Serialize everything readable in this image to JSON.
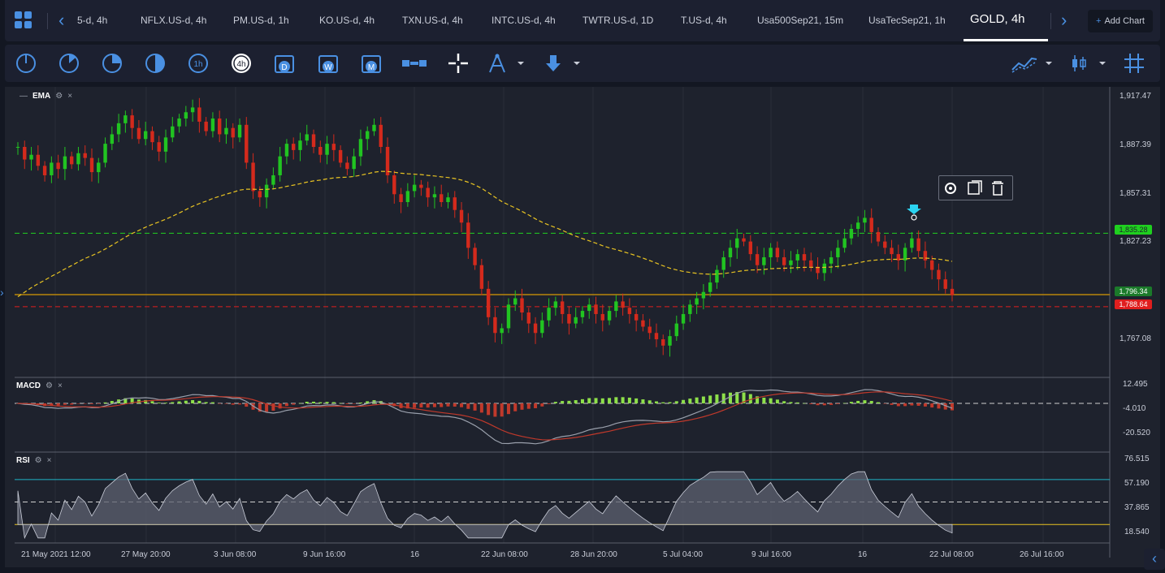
{
  "tabs": [
    {
      "label": "5-d, 4h"
    },
    {
      "label": "NFLX.US-d, 4h"
    },
    {
      "label": "PM.US-d, 1h"
    },
    {
      "label": "KO.US-d, 4h"
    },
    {
      "label": "TXN.US-d, 4h"
    },
    {
      "label": "INTC.US-d, 4h"
    },
    {
      "label": "TWTR.US-d, 1D"
    },
    {
      "label": "T.US-d, 4h"
    },
    {
      "label": "Usa500Sep21, 15m"
    },
    {
      "label": "UsaTecSep21, 1h"
    },
    {
      "label": "GOLD, 4h"
    }
  ],
  "add_chart": {
    "plus": "+",
    "label": "Add Chart"
  },
  "toolbar": {
    "period_4h": "4h",
    "period_1h": "1h",
    "period_d": "D",
    "period_w": "W",
    "period_m": "M"
  },
  "indicators": {
    "ema": {
      "label": "EMA",
      "close": "×"
    },
    "macd": {
      "label": "MACD",
      "close": "×"
    },
    "rsi": {
      "label": "RSI",
      "close": "×"
    }
  },
  "price_axis": [
    "1,917.47",
    "1,887.39",
    "1,857.31",
    "1,827.23",
    "1,767.08"
  ],
  "price_tags": {
    "green": "1,835.28",
    "dark_green": "1,796.34",
    "red": "1,788.64"
  },
  "macd_axis": [
    "12.495",
    "-4.010",
    "-20.520"
  ],
  "rsi_axis": [
    "76.515",
    "57.190",
    "37.865",
    "18.540"
  ],
  "time_axis": [
    "21 May 2021 12:00",
    "27 May 20:00",
    "3 Jun 08:00",
    "9 Jun 16:00",
    "16",
    "22 Jun 08:00",
    "28 Jun 20:00",
    "5 Jul 04:00",
    "9 Jul 16:00",
    "16",
    "22 Jul 08:00",
    "26 Jul 16:00"
  ],
  "colors": {
    "up": "#21c421",
    "down": "#d42a1c",
    "ema": "#e8c322",
    "accent": "#4a90e2"
  },
  "chart_data": {
    "type": "candlestick",
    "symbol": "GOLD",
    "timeframe": "4h",
    "ylim": [
      1750,
      1925
    ],
    "closes": [
      1890,
      1882,
      1885,
      1878,
      1872,
      1880,
      1876,
      1884,
      1879,
      1886,
      1883,
      1874,
      1880,
      1892,
      1898,
      1905,
      1910,
      1902,
      1895,
      1900,
      1893,
      1887,
      1896,
      1903,
      1908,
      1912,
      1915,
      1906,
      1900,
      1908,
      1898,
      1902,
      1896,
      1904,
      1880,
      1862,
      1858,
      1866,
      1872,
      1884,
      1892,
      1888,
      1894,
      1898,
      1890,
      1885,
      1892,
      1888,
      1880,
      1876,
      1884,
      1895,
      1900,
      1904,
      1890,
      1872,
      1860,
      1855,
      1862,
      1866,
      1864,
      1858,
      1860,
      1855,
      1858,
      1850,
      1842,
      1826,
      1815,
      1800,
      1782,
      1772,
      1775,
      1790,
      1794,
      1785,
      1778,
      1772,
      1780,
      1788,
      1792,
      1784,
      1778,
      1782,
      1786,
      1790,
      1784,
      1780,
      1786,
      1792,
      1788,
      1784,
      1780,
      1776,
      1772,
      1768,
      1764,
      1770,
      1778,
      1784,
      1790,
      1794,
      1798,
      1804,
      1812,
      1820,
      1826,
      1832,
      1830,
      1822,
      1815,
      1820,
      1826,
      1820,
      1815,
      1818,
      1822,
      1818,
      1814,
      1810,
      1816,
      1820,
      1826,
      1832,
      1838,
      1842,
      1845,
      1836,
      1830,
      1826,
      1822,
      1818,
      1826,
      1832,
      1824,
      1818,
      1812,
      1806,
      1800,
      1796
    ]
  }
}
